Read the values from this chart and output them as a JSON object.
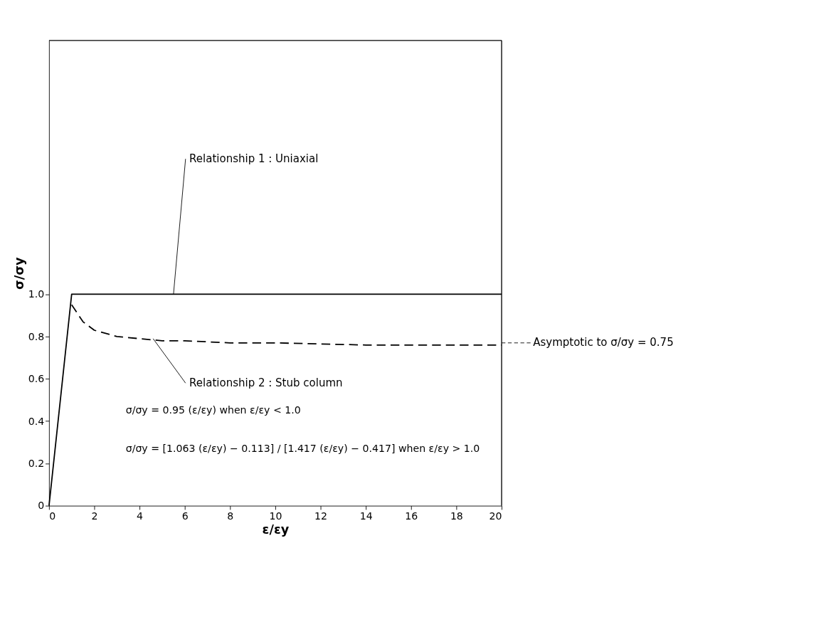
{
  "chart_data": {
    "type": "line",
    "xlabel": "ε/εy",
    "ylabel": "σ/σy",
    "xlim": [
      0,
      20
    ],
    "xticks": [
      0,
      2,
      4,
      6,
      8,
      10,
      12,
      14,
      16,
      18,
      20
    ],
    "ylim": [
      0,
      2.2
    ],
    "yticks": [
      0,
      0.2,
      0.4,
      0.6,
      0.8,
      {
        "value": 1,
        "label": "1.0"
      }
    ],
    "grid": false,
    "marker": "none",
    "series": [
      {
        "color": "#000000",
        "line_style": "solid",
        "x": [
          0,
          1,
          20
        ],
        "values": [
          0,
          1.0,
          1.0
        ]
      },
      {
        "color": "#000000",
        "line_style": "dashed",
        "x": [
          1,
          1.5,
          2,
          3,
          4,
          5,
          6,
          8,
          10,
          14,
          20
        ],
        "values": [
          0.95,
          0.87,
          0.83,
          0.8,
          0.79,
          0.78,
          0.78,
          0.77,
          0.77,
          0.76,
          0.76
        ]
      }
    ],
    "annotations": [
      {
        "text": "Relationship 1 : Uniaxial",
        "x": 5.5,
        "y": 1.0
      },
      {
        "text": "Relationship 2 : Stub column",
        "x": 4.6,
        "y": 0.79
      },
      {
        "text": "Asymptotic to σ/σy = 0.75",
        "x": 20,
        "y": 0.77
      },
      "σ/σy  =  0.95 (ε/εy)   when  ε/εy < 1.0",
      "σ/σy  =  [1.063 (ε/εy) − 0.113] / [1.417 (ε/εy) − 0.417]   when  ε/εy > 1.0"
    ]
  }
}
